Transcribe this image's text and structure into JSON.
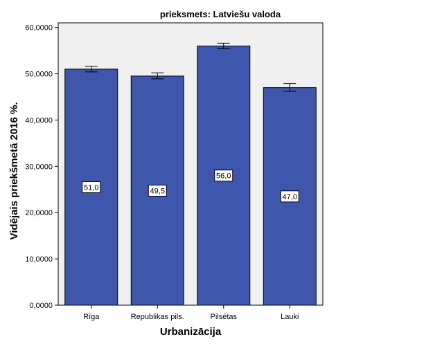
{
  "chart_data": {
    "type": "bar",
    "title": "prieksmets: Latviešu valoda",
    "xlabel": "Urbanizācija",
    "ylabel": "Vidējais priekšmetā 2016 %.",
    "categories": [
      "Rīga",
      "Republikas pils.",
      "Pilsētas",
      "Lauki"
    ],
    "values": [
      51.0,
      49.5,
      56.0,
      47.0
    ],
    "data_labels": [
      "51,0",
      "49,5",
      "56,0",
      "47,0"
    ],
    "error_low": [
      50.4,
      48.9,
      55.4,
      46.2
    ],
    "error_high": [
      51.6,
      50.2,
      56.6,
      47.9
    ],
    "ylim": [
      0,
      61
    ],
    "yticks": [
      0,
      10,
      20,
      30,
      40,
      50,
      60
    ],
    "ytick_labels": [
      "0,0000",
      "10,0000",
      "20,0000",
      "30,0000",
      "40,0000",
      "50,0000",
      "60,0000"
    ],
    "grid": false,
    "legend": "none",
    "colors": {
      "bar_fill": "#3f56ad",
      "bar_stroke": "#000000",
      "plot_background": "#f0f0f0",
      "page_background": "#ffffff"
    }
  }
}
